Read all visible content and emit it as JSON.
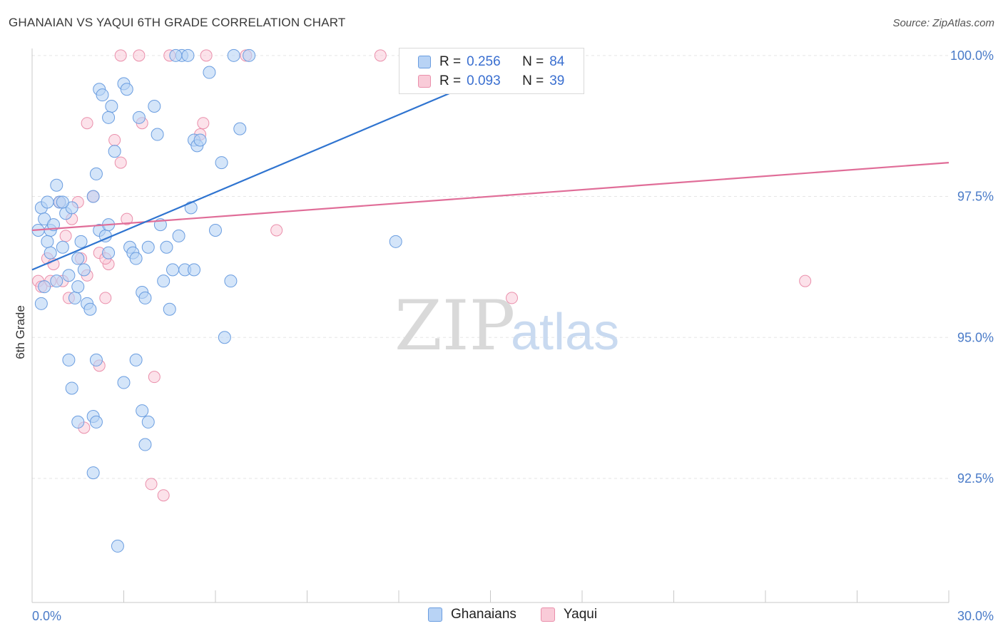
{
  "title": "GHANAIAN VS YAQUI 6TH GRADE CORRELATION CHART",
  "source": "Source: ZipAtlas.com",
  "watermark": {
    "zip": "ZIP",
    "atlas": "atlas"
  },
  "legend": {
    "rows": [
      {
        "r_label": "R =",
        "r_value": "0.256",
        "n_label": "N =",
        "n_value": "84"
      },
      {
        "r_label": "R =",
        "r_value": "0.093",
        "n_label": "N =",
        "n_value": "39"
      }
    ]
  },
  "colors": {
    "ghanaians_fill": "#b8d3f5",
    "ghanaians_stroke": "#6a9de0",
    "ghanaians_line": "#2f74d0",
    "yaqui_fill": "#f9cbd8",
    "yaqui_stroke": "#ea8fab",
    "yaqui_line": "#e06d98",
    "tick_text": "#4a7bc8",
    "grid": "#e5e5e5"
  },
  "chart_data": {
    "type": "scatter",
    "xlabel": "",
    "ylabel": "6th Grade",
    "xlim": [
      0,
      30
    ],
    "ylim": [
      90.3,
      100.2
    ],
    "x_tick_labels": [
      {
        "value": 0,
        "label": "0.0%"
      },
      {
        "value": 30,
        "label": "30.0%"
      }
    ],
    "y_tick_labels": [
      {
        "value": 100,
        "label": "100.0%"
      },
      {
        "value": 97.5,
        "label": "97.5%"
      },
      {
        "value": 95,
        "label": "95.0%"
      },
      {
        "value": 92.5,
        "label": "92.5%"
      }
    ],
    "grid": true,
    "legend_position": "top-center",
    "series": [
      {
        "name": "Ghanaians",
        "r": 0.256,
        "n": 84,
        "trend": [
          [
            0,
            96.2
          ],
          [
            15.5,
            99.75
          ]
        ],
        "points": [
          [
            0.2,
            96.9
          ],
          [
            0.3,
            97.3
          ],
          [
            0.4,
            97.1
          ],
          [
            0.5,
            97.4
          ],
          [
            0.6,
            96.9
          ],
          [
            0.8,
            97.7
          ],
          [
            0.9,
            97.4
          ],
          [
            0.6,
            96.5
          ],
          [
            0.8,
            96.0
          ],
          [
            1.0,
            96.6
          ],
          [
            1.1,
            97.2
          ],
          [
            1.2,
            96.1
          ],
          [
            1.3,
            97.3
          ],
          [
            1.4,
            95.7
          ],
          [
            1.5,
            96.4
          ],
          [
            1.5,
            95.9
          ],
          [
            1.6,
            96.7
          ],
          [
            1.7,
            96.2
          ],
          [
            1.8,
            95.6
          ],
          [
            1.9,
            95.5
          ],
          [
            2.0,
            97.5
          ],
          [
            2.2,
            96.9
          ],
          [
            2.4,
            96.8
          ],
          [
            2.5,
            96.5
          ],
          [
            2.6,
            99.1
          ],
          [
            2.7,
            98.3
          ],
          [
            2.2,
            99.4
          ],
          [
            2.3,
            99.3
          ],
          [
            2.5,
            98.9
          ],
          [
            2.1,
            97.9
          ],
          [
            3.0,
            99.5
          ],
          [
            3.1,
            99.4
          ],
          [
            3.2,
            96.6
          ],
          [
            3.3,
            96.5
          ],
          [
            3.4,
            96.4
          ],
          [
            3.5,
            98.9
          ],
          [
            3.6,
            95.8
          ],
          [
            3.7,
            95.7
          ],
          [
            4.0,
            99.1
          ],
          [
            4.1,
            98.6
          ],
          [
            4.3,
            96.0
          ],
          [
            4.4,
            96.6
          ],
          [
            4.5,
            95.5
          ],
          [
            4.6,
            96.2
          ],
          [
            4.8,
            96.8
          ],
          [
            5.0,
            96.2
          ],
          [
            5.2,
            97.3
          ],
          [
            5.3,
            98.5
          ],
          [
            5.4,
            98.4
          ],
          [
            5.5,
            98.5
          ],
          [
            5.8,
            99.7
          ],
          [
            6.0,
            96.9
          ],
          [
            6.2,
            98.1
          ],
          [
            6.5,
            96.0
          ],
          [
            6.6,
            100.0
          ],
          [
            6.8,
            98.7
          ],
          [
            7.1,
            100.0
          ],
          [
            4.9,
            100.0
          ],
          [
            4.7,
            100.0
          ],
          [
            5.1,
            100.0
          ],
          [
            1.2,
            94.6
          ],
          [
            1.3,
            94.1
          ],
          [
            2.1,
            94.6
          ],
          [
            3.4,
            94.6
          ],
          [
            3.0,
            94.2
          ],
          [
            1.5,
            93.5
          ],
          [
            2.0,
            93.6
          ],
          [
            2.1,
            93.5
          ],
          [
            3.6,
            93.7
          ],
          [
            3.8,
            93.5
          ],
          [
            3.7,
            93.1
          ],
          [
            2.0,
            92.6
          ],
          [
            2.8,
            91.3
          ],
          [
            6.3,
            95.0
          ],
          [
            11.9,
            96.7
          ],
          [
            0.3,
            95.6
          ],
          [
            0.5,
            96.7
          ],
          [
            0.7,
            97.0
          ],
          [
            1.0,
            97.4
          ],
          [
            2.5,
            97.0
          ],
          [
            3.8,
            96.6
          ],
          [
            4.2,
            97.0
          ],
          [
            5.3,
            96.2
          ],
          [
            0.4,
            95.9
          ]
        ]
      },
      {
        "name": "Yaqui",
        "r": 0.093,
        "n": 39,
        "trend": [
          [
            0,
            96.9
          ],
          [
            30,
            98.1
          ]
        ],
        "points": [
          [
            0.2,
            96.0
          ],
          [
            0.3,
            95.9
          ],
          [
            0.5,
            96.4
          ],
          [
            0.7,
            96.3
          ],
          [
            0.9,
            97.4
          ],
          [
            1.0,
            96.0
          ],
          [
            1.1,
            96.8
          ],
          [
            1.2,
            95.7
          ],
          [
            1.3,
            97.1
          ],
          [
            1.5,
            97.4
          ],
          [
            1.6,
            96.4
          ],
          [
            1.8,
            96.1
          ],
          [
            2.0,
            97.5
          ],
          [
            2.2,
            96.5
          ],
          [
            2.4,
            95.7
          ],
          [
            2.5,
            96.3
          ],
          [
            2.7,
            98.5
          ],
          [
            2.9,
            98.1
          ],
          [
            3.1,
            97.1
          ],
          [
            3.6,
            98.8
          ],
          [
            1.8,
            98.8
          ],
          [
            2.9,
            100.0
          ],
          [
            3.5,
            100.0
          ],
          [
            4.5,
            100.0
          ],
          [
            5.7,
            100.0
          ],
          [
            7.0,
            100.0
          ],
          [
            11.4,
            100.0
          ],
          [
            5.5,
            98.6
          ],
          [
            5.6,
            98.8
          ],
          [
            8.0,
            96.9
          ],
          [
            15.7,
            95.7
          ],
          [
            25.3,
            96.0
          ],
          [
            2.2,
            94.5
          ],
          [
            4.0,
            94.3
          ],
          [
            1.7,
            93.4
          ],
          [
            3.9,
            92.4
          ],
          [
            4.3,
            92.2
          ],
          [
            0.6,
            96.0
          ],
          [
            2.4,
            96.4
          ]
        ]
      }
    ]
  },
  "bottom_legend": [
    "Ghanaians",
    "Yaqui"
  ]
}
